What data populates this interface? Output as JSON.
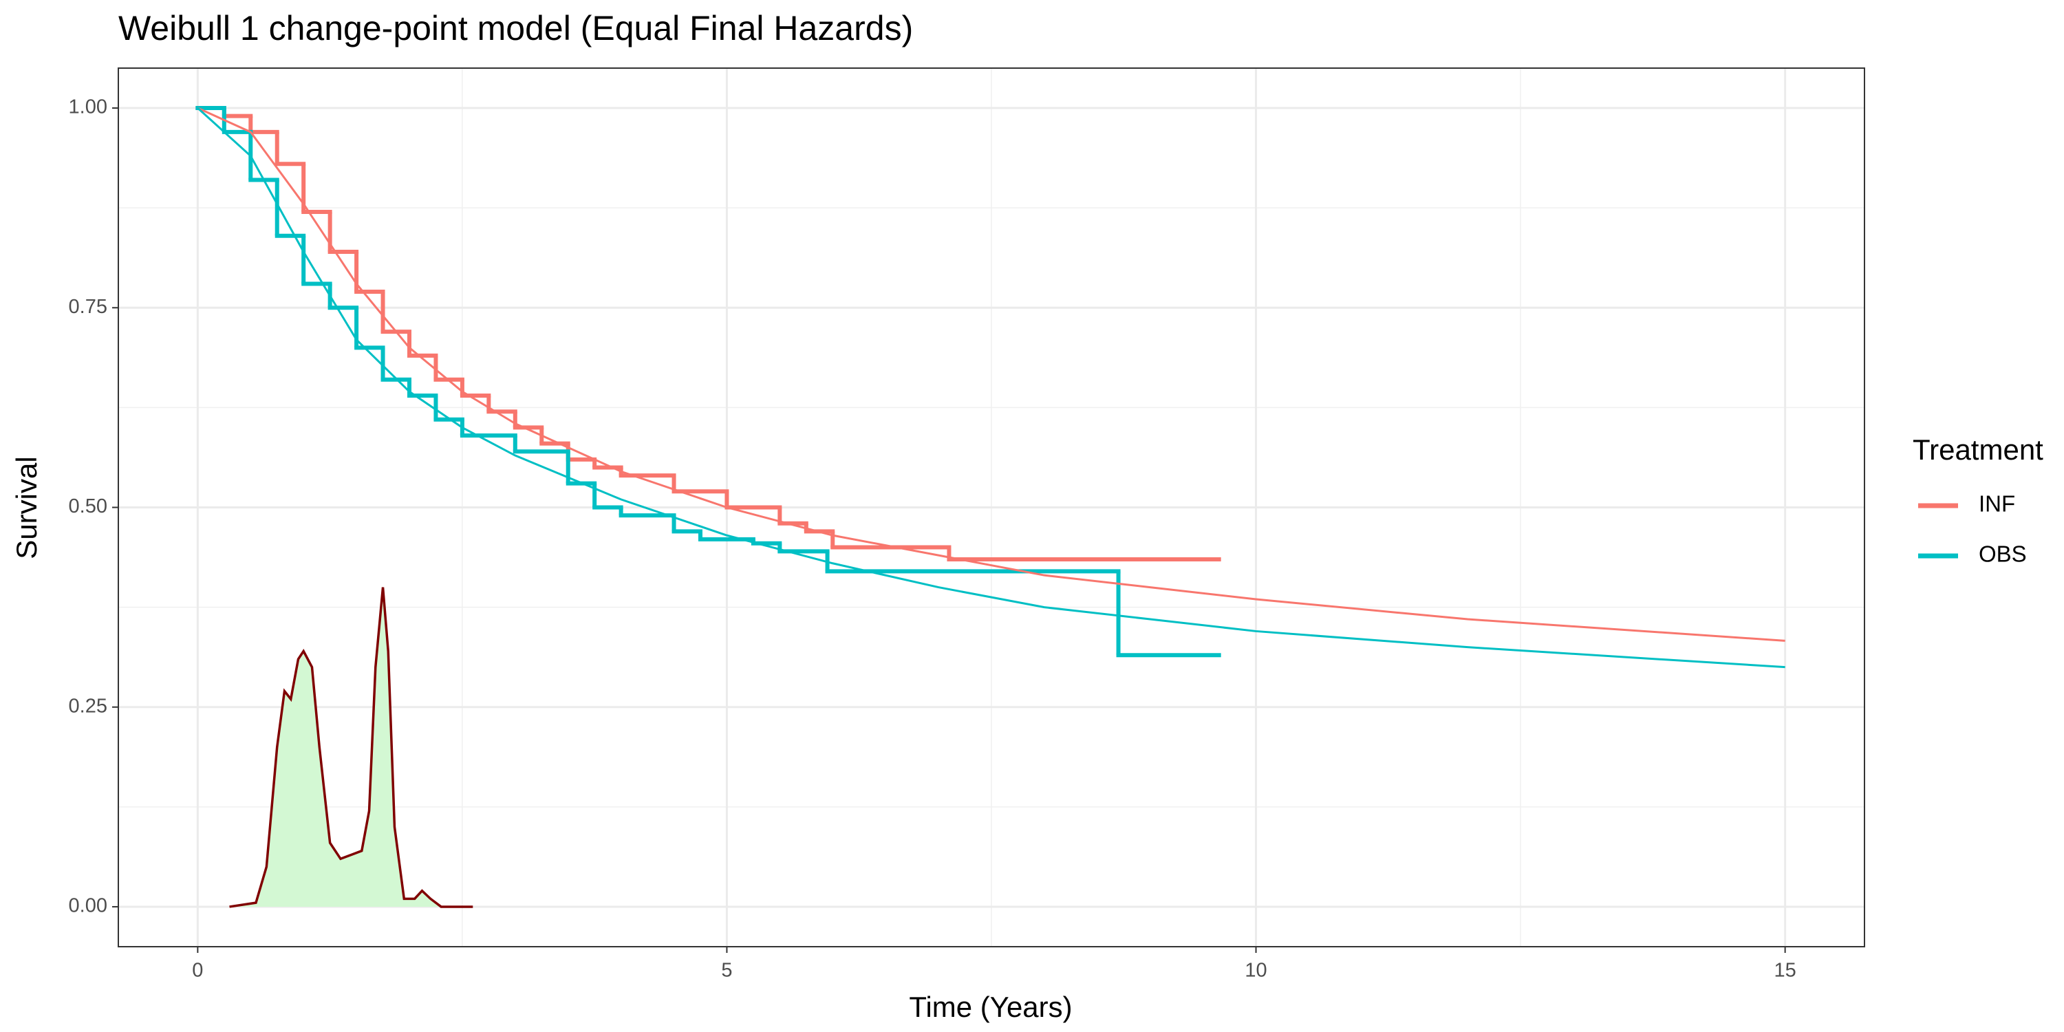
{
  "chart_data": {
    "type": "survival",
    "title": "Weibull 1 change-point model (Equal Final Hazards)",
    "x_label": "Time (Years)",
    "y_label": "Survival",
    "xlim": [
      -0.75,
      15.75
    ],
    "ylim": [
      -0.05,
      1.05
    ],
    "xticks": [
      0,
      5,
      10,
      15
    ],
    "x_minor_ticks": [
      2.5,
      7.5,
      12.5
    ],
    "yticks": [
      {
        "value": 0,
        "label": "0.00"
      },
      {
        "value": 0.25,
        "label": "0.25"
      },
      {
        "value": 0.5,
        "label": "0.50"
      },
      {
        "value": 0.75,
        "label": "0.75"
      },
      {
        "value": 1,
        "label": "1.00"
      }
    ],
    "y_minor_ticks": [
      0.125,
      0.375,
      0.625,
      0.875
    ],
    "grid": true,
    "legend": {
      "title": "Treatment",
      "position": "right"
    },
    "km_curves": [
      {
        "name": "INF",
        "color": "#f8766d",
        "x": [
          0,
          0.25,
          0.5,
          0.75,
          1,
          1.25,
          1.5,
          1.75,
          2,
          2.25,
          2.5,
          2.75,
          3,
          3.25,
          3.5,
          3.75,
          4,
          4.5,
          5,
          5.5,
          5.75,
          6,
          7.1,
          9.65
        ],
        "values": [
          1,
          0.99,
          0.97,
          0.93,
          0.87,
          0.82,
          0.77,
          0.72,
          0.69,
          0.66,
          0.64,
          0.62,
          0.6,
          0.58,
          0.56,
          0.55,
          0.54,
          0.52,
          0.5,
          0.48,
          0.47,
          0.45,
          0.435,
          0.435
        ]
      },
      {
        "name": "OBS",
        "color": "#00bfc4",
        "x": [
          0,
          0.25,
          0.5,
          0.75,
          1,
          1.25,
          1.5,
          1.75,
          2,
          2.25,
          2.5,
          3,
          3.5,
          3.75,
          4,
          4.5,
          4.75,
          5.25,
          5.5,
          5.95,
          8.7,
          9.65
        ],
        "values": [
          1,
          0.97,
          0.91,
          0.84,
          0.78,
          0.75,
          0.7,
          0.66,
          0.64,
          0.61,
          0.59,
          0.57,
          0.53,
          0.5,
          0.49,
          0.47,
          0.46,
          0.455,
          0.445,
          0.42,
          0.315,
          0.315
        ]
      }
    ],
    "fitted_curves": [
      {
        "color": "#f8766d",
        "x": [
          0,
          0.5,
          1,
          1.5,
          2,
          2.5,
          3,
          4,
          5,
          6,
          7,
          8,
          9,
          10,
          12,
          15
        ],
        "values": [
          1,
          0.97,
          0.88,
          0.78,
          0.7,
          0.645,
          0.605,
          0.545,
          0.5,
          0.465,
          0.44,
          0.415,
          0.4,
          0.385,
          0.36,
          0.333
        ]
      },
      {
        "color": "#00bfc4",
        "x": [
          0,
          0.5,
          1,
          1.5,
          2,
          2.5,
          3,
          4,
          5,
          6,
          7,
          8,
          9,
          10,
          12,
          15
        ],
        "values": [
          1,
          0.94,
          0.82,
          0.71,
          0.645,
          0.6,
          0.565,
          0.51,
          0.465,
          0.43,
          0.4,
          0.375,
          0.36,
          0.345,
          0.325,
          0.3
        ]
      }
    ],
    "density": {
      "color": "#800000",
      "fill": "#d3f8d3",
      "x": [
        0.3,
        0.55,
        0.65,
        0.75,
        0.82,
        0.88,
        0.95,
        1.0,
        1.08,
        1.15,
        1.25,
        1.35,
        1.45,
        1.55,
        1.62,
        1.68,
        1.75,
        1.8,
        1.86,
        1.95,
        2.05,
        2.12,
        2.2,
        2.3,
        2.6
      ],
      "values": [
        0,
        0.005,
        0.05,
        0.2,
        0.27,
        0.26,
        0.31,
        0.32,
        0.3,
        0.2,
        0.08,
        0.06,
        0.065,
        0.07,
        0.12,
        0.3,
        0.4,
        0.32,
        0.1,
        0.01,
        0.01,
        0.02,
        0.01,
        0,
        0
      ]
    }
  }
}
